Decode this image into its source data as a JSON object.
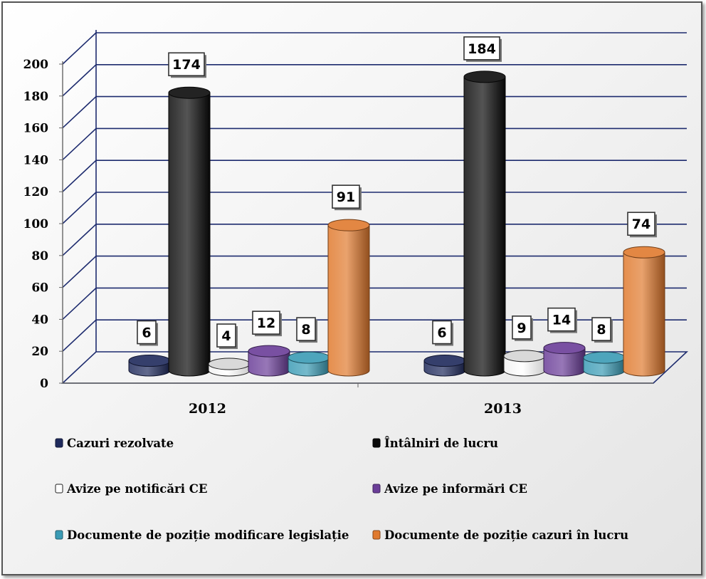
{
  "chart_data": {
    "type": "bar",
    "style": "3d-cylinder",
    "categories": [
      "2012",
      "2013"
    ],
    "series": [
      {
        "name": "Cazuri rezolvate",
        "values": [
          6,
          6
        ],
        "color": "#1f2a5c"
      },
      {
        "name": "Întâlniri de lucru",
        "values": [
          174,
          184
        ],
        "color": "#0a0a0a"
      },
      {
        "name": "Avize pe notificări CE",
        "values": [
          4,
          9
        ],
        "color": "#ffffff"
      },
      {
        "name": "Avize pe informări CE",
        "values": [
          12,
          14
        ],
        "color": "#6a3d98"
      },
      {
        "name": "Documente de poziție modificare legislație",
        "values": [
          8,
          8
        ],
        "color": "#3a9bb5"
      },
      {
        "name": "Documente de poziție cazuri în lucru",
        "values": [
          91,
          74
        ],
        "color": "#e07a2e"
      }
    ],
    "ylim": [
      0,
      200
    ],
    "yticks": [
      "0",
      "20",
      "40",
      "60",
      "80",
      "100",
      "120",
      "140",
      "160",
      "180",
      "200"
    ],
    "grid": true,
    "legend_position": "bottom",
    "data_labels": true
  }
}
